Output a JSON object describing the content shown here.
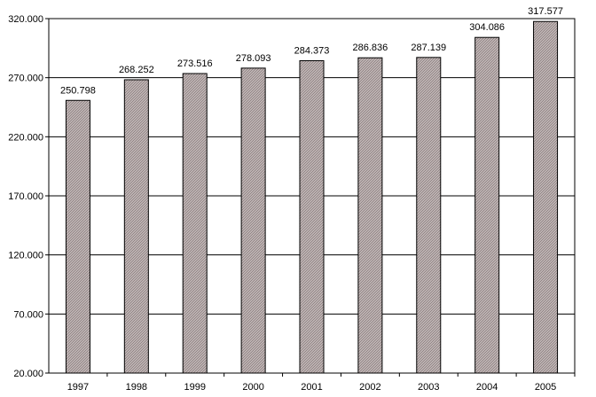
{
  "chart_data": {
    "type": "bar",
    "title": "",
    "xlabel": "",
    "ylabel": "",
    "categories": [
      "1997",
      "1998",
      "1999",
      "2000",
      "2001",
      "2002",
      "2003",
      "2004",
      "2005"
    ],
    "values": [
      250798,
      268252,
      273516,
      278093,
      284373,
      286836,
      287139,
      304086,
      317577
    ],
    "data_labels": [
      "250.798",
      "268.252",
      "273.516",
      "278.093",
      "284.373",
      "286.836",
      "287.139",
      "304.086",
      "317.577"
    ],
    "ylim": [
      20000,
      320000
    ],
    "yticks": [
      20000,
      70000,
      120000,
      170000,
      220000,
      270000,
      320000
    ],
    "ytick_labels": [
      "20.000",
      "70.000",
      "120.000",
      "170.000",
      "220.000",
      "270.000",
      "320.000"
    ],
    "grid": true,
    "legend": "none",
    "colors": {
      "bar_fill": "#c9c0c0",
      "bar_hatch": "#8a7c7c",
      "bar_stroke": "#000000",
      "gridline": "#000000",
      "background": "#ffffff"
    }
  }
}
